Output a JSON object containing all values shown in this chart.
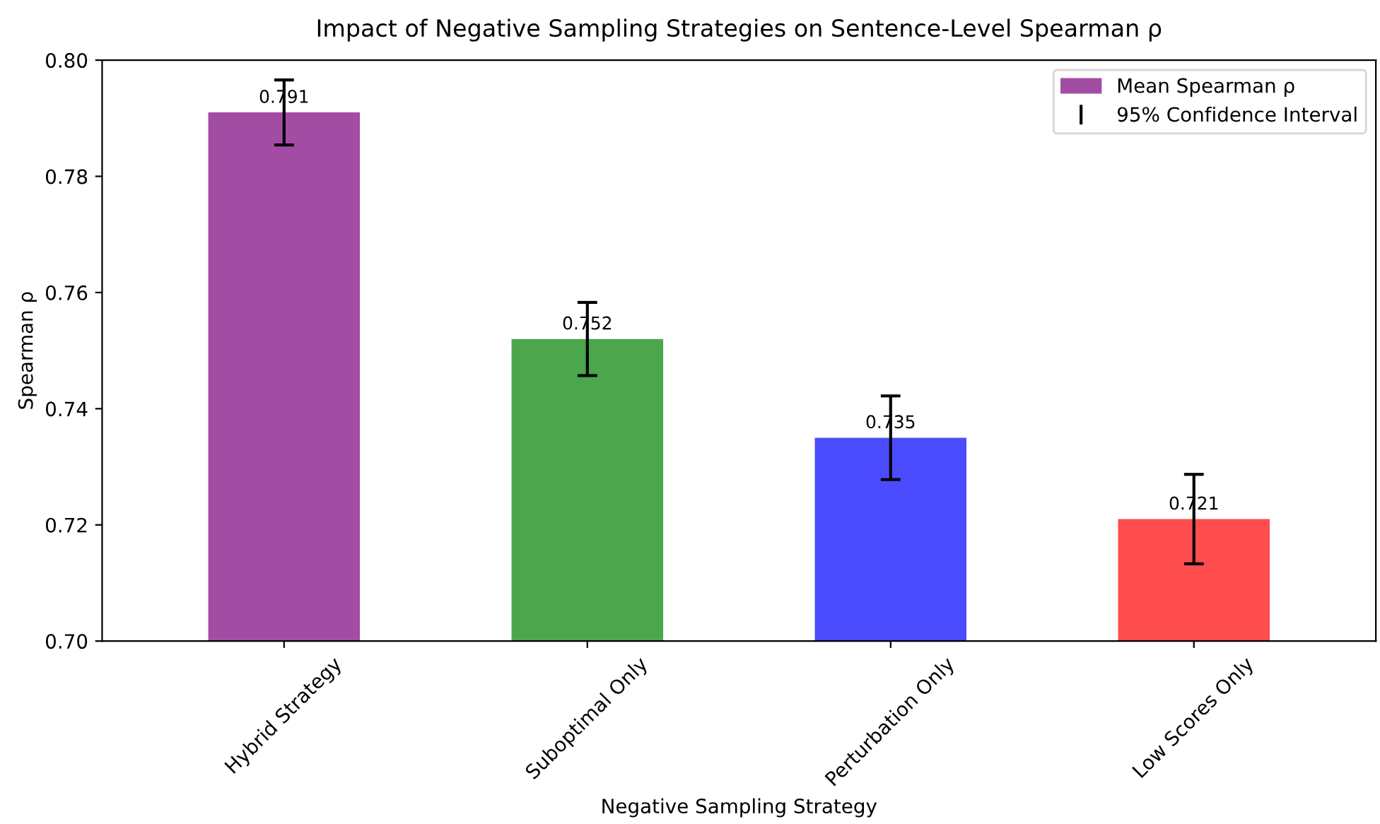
{
  "chart_data": {
    "type": "bar",
    "title": "Impact of Negative Sampling Strategies on Sentence-Level Spearman ρ",
    "xlabel": "Negative Sampling Strategy",
    "ylabel": "Spearman ρ",
    "categories": [
      "Hybrid Strategy",
      "Suboptimal Only",
      "Perturbation Only",
      "Low Scores Only"
    ],
    "series": [
      {
        "name": "Mean Spearman ρ",
        "values": [
          0.791,
          0.752,
          0.735,
          0.721
        ],
        "colors": [
          "#a34ca3",
          "#4ca64c",
          "#4c4cff",
          "#ff4c4c"
        ],
        "errors": [
          0.0056,
          0.0063,
          0.0072,
          0.0077
        ]
      }
    ],
    "annotations": [
      "95% Confidence Interval"
    ],
    "ylim": [
      0.7,
      0.8
    ],
    "yticks": [
      {
        "value": 0.7,
        "label": "0.70"
      },
      0.72,
      0.74,
      0.76,
      0.78,
      {
        "value": 0.8,
        "label": "0.80"
      }
    ],
    "data_labels": true,
    "legend": "top right",
    "grid": false
  }
}
